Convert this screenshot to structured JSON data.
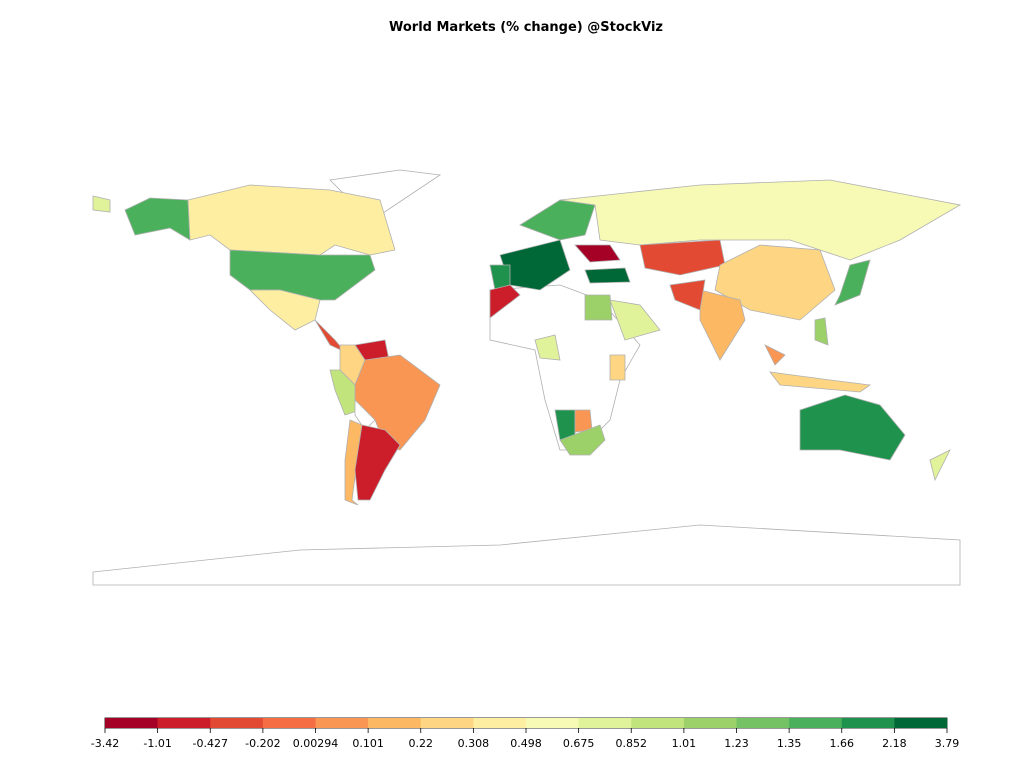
{
  "title": "World Markets (% change) @StockViz",
  "legend": {
    "breaks": [
      -3.42,
      -1.01,
      -0.427,
      -0.202,
      0.00294,
      0.101,
      0.22,
      0.308,
      0.498,
      0.675,
      0.852,
      1.01,
      1.23,
      1.35,
      1.66,
      2.18,
      3.79
    ],
    "colors": [
      "#a50026",
      "#cb1d2a",
      "#e34a33",
      "#f46d43",
      "#f99653",
      "#fdb863",
      "#fed683",
      "#feeea2",
      "#f7fab4",
      "#e0f29a",
      "#c1e47d",
      "#9cd169",
      "#74c264",
      "#4bb05c",
      "#1f934e",
      "#006837"
    ]
  }
}
